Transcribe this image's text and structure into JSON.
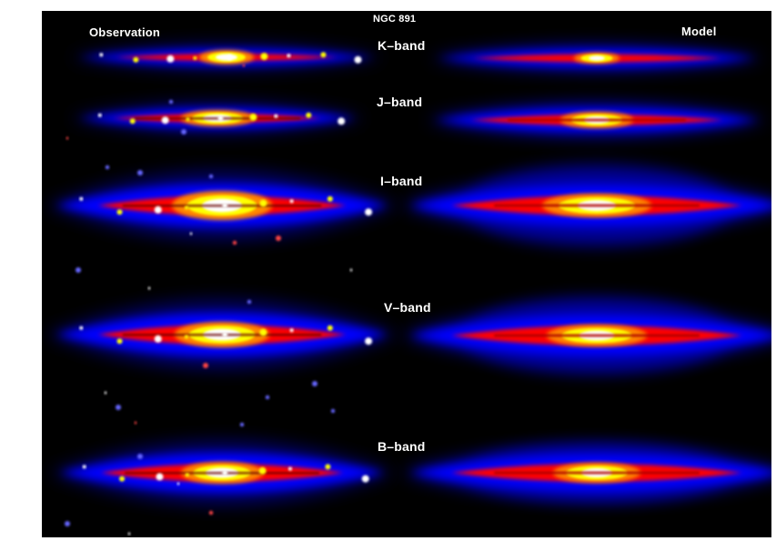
{
  "figure": {
    "title": "NGC 891",
    "left_heading": "Observation",
    "right_heading": "Model",
    "bands": [
      {
        "key": "k",
        "label": "K–band"
      },
      {
        "key": "j",
        "label": "J–band"
      },
      {
        "key": "i",
        "label": "I–band"
      },
      {
        "key": "v",
        "label": "V–band"
      },
      {
        "key": "b",
        "label": "B–band"
      }
    ],
    "colors": {
      "background": "#000000",
      "outer_halo": "#0000ff",
      "mid_glow": "#ff0000",
      "hot_core": "#ffff00",
      "peak": "#ffffff",
      "page": "#ffffff"
    },
    "colormap": "black-blue-red-yellow-white"
  }
}
